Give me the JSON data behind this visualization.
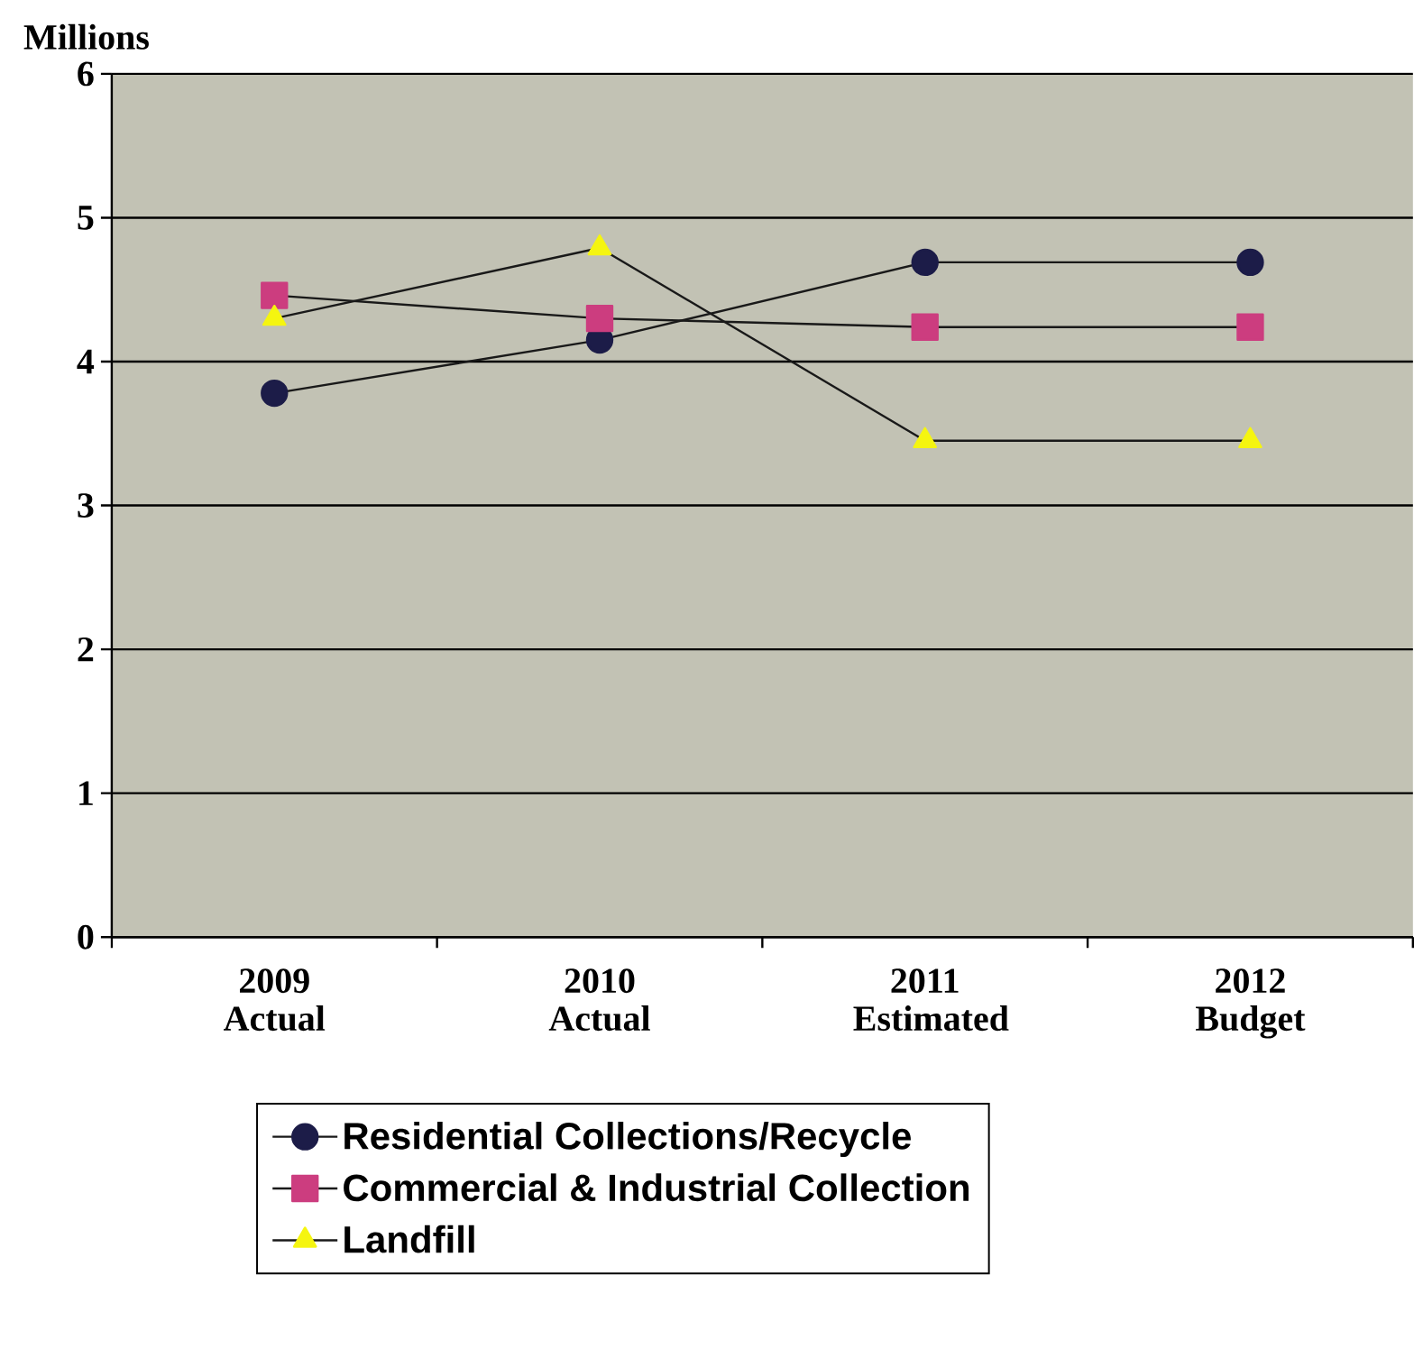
{
  "chart_data": {
    "type": "line",
    "ylabel": "Millions",
    "categories": [
      "2009 Actual",
      "2010 Actual",
      "2011 Estimated",
      "2012 Budget"
    ],
    "series": [
      {
        "name": "Residential Collections/Recycle",
        "color": "#1c1c48",
        "marker": "circle",
        "values": [
          3.78,
          4.15,
          4.69,
          4.69
        ]
      },
      {
        "name": "Commercial & Industrial Collection",
        "color": "#cc3d7f",
        "marker": "square",
        "values": [
          4.46,
          4.3,
          4.24,
          4.24
        ]
      },
      {
        "name": "Landfill",
        "color": "#f5f510",
        "marker": "triangle",
        "values": [
          4.3,
          4.79,
          3.45,
          3.45
        ]
      }
    ],
    "ylim": [
      0,
      6
    ],
    "yticks": [
      0,
      1,
      2,
      3,
      4,
      5,
      6
    ],
    "grid": "y",
    "legend": "bottom",
    "line_style": "solid"
  }
}
